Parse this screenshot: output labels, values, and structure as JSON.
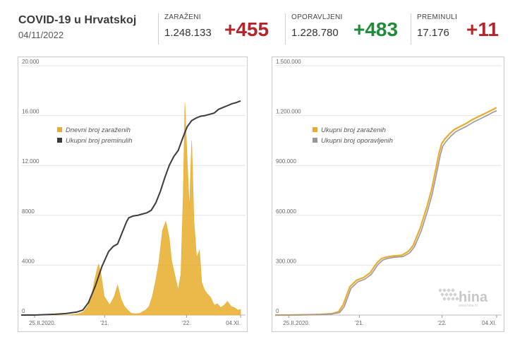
{
  "header": {
    "title": "COVID-19 u Hrvatskoj",
    "date": "04/11/2022",
    "stats": [
      {
        "label": "ZARAŽENI",
        "value": "1.248.133",
        "delta": "+455",
        "color": "red"
      },
      {
        "label": "OPORAVLJENI",
        "value": "1.228.780",
        "delta": "+483",
        "color": "green"
      },
      {
        "label": "PREMINULI",
        "value": "17.176",
        "delta": "+11",
        "color": "red"
      }
    ]
  },
  "logo": {
    "text": "hina",
    "sub": "www.hina.hr"
  },
  "colors": {
    "cases": "#e8ac2a",
    "deaths": "#3c3a3c",
    "recovered": "#9a96a0"
  },
  "chart_data": [
    {
      "type": "area",
      "ylim": [
        0,
        20000
      ],
      "yticks": [
        0,
        4000,
        8000,
        12000,
        16000,
        20000
      ],
      "ytick_labels": [
        "0",
        "4000",
        "8000",
        "12.000",
        "16.000",
        "20.000"
      ],
      "xlim": [
        0,
        1000
      ],
      "xticks": [
        60,
        372,
        737,
        978
      ],
      "xtick_labels": [
        "25.II.2020.",
        "'21.",
        "'22.",
        "04.XI."
      ],
      "legend": [
        "Dnevni broj zaraženih",
        "Ukupni broj preminulih"
      ],
      "series": [
        {
          "name": "Dnevni broj zaraženih",
          "kind": "area",
          "x": [
            0,
            60,
            200,
            240,
            255,
            270,
            280,
            300,
            315,
            325,
            335,
            345,
            355,
            370,
            395,
            415,
            430,
            445,
            460,
            475,
            490,
            510,
            530,
            555,
            570,
            585,
            600,
            615,
            630,
            645,
            660,
            670,
            685,
            700,
            712,
            722,
            730,
            740,
            750,
            760,
            770,
            782,
            795,
            805,
            818,
            830,
            845,
            860,
            875,
            890,
            905,
            920,
            935,
            950,
            965,
            978
          ],
          "y": [
            0,
            0,
            0,
            50,
            100,
            200,
            300,
            800,
            1700,
            2600,
            3400,
            4100,
            3400,
            1500,
            800,
            1500,
            2400,
            1300,
            700,
            400,
            150,
            100,
            150,
            400,
            700,
            1500,
            2800,
            4400,
            6800,
            7500,
            6200,
            4400,
            3200,
            2000,
            3300,
            9500,
            17000,
            12500,
            8500,
            14000,
            7600,
            4600,
            5200,
            2600,
            2000,
            1700,
            1400,
            800,
            900,
            600,
            800,
            1100,
            700,
            600,
            400,
            455
          ]
        },
        {
          "name": "Ukupni broj preminulih",
          "kind": "line",
          "x": [
            0,
            60,
            150,
            200,
            250,
            275,
            300,
            330,
            360,
            390,
            410,
            430,
            450,
            470,
            480,
            500,
            520,
            540,
            560,
            580,
            600,
            620,
            640,
            660,
            680,
            700,
            720,
            740,
            760,
            780,
            800,
            820,
            840,
            860,
            880,
            900,
            920,
            940,
            960,
            978
          ],
          "y": [
            0,
            0,
            60,
            120,
            250,
            400,
            1000,
            2300,
            3900,
            5100,
            5500,
            5700,
            6600,
            7500,
            7800,
            7950,
            8000,
            8100,
            8200,
            8400,
            9000,
            9900,
            11000,
            12000,
            12700,
            13200,
            14200,
            15100,
            15600,
            15800,
            15950,
            16000,
            16100,
            16200,
            16500,
            16650,
            16800,
            16950,
            17050,
            17176
          ]
        }
      ]
    },
    {
      "type": "line",
      "ylim": [
        0,
        1500000
      ],
      "yticks": [
        0,
        300000,
        600000,
        900000,
        1200000,
        1500000
      ],
      "ytick_labels": [
        "0",
        "300.000",
        "600.000",
        "900.000",
        "1.200.000",
        "1.500.000"
      ],
      "xlim": [
        0,
        1000
      ],
      "xticks": [
        60,
        372,
        737,
        978
      ],
      "xtick_labels": [
        "25.II.2020.",
        "'21.",
        "'22.",
        "04.XI."
      ],
      "legend": [
        "Ukupni broj zaraženih",
        "Ukupni broj oporavljenih"
      ],
      "series": [
        {
          "name": "Ukupni broj zaraženih",
          "x": [
            0,
            60,
            150,
            200,
            250,
            280,
            300,
            330,
            360,
            390,
            420,
            450,
            470,
            490,
            520,
            560,
            590,
            610,
            640,
            670,
            690,
            710,
            725,
            735,
            750,
            770,
            790,
            810,
            840,
            870,
            900,
            930,
            960,
            978
          ],
          "y": [
            0,
            0,
            2000,
            4000,
            8000,
            20000,
            60000,
            170000,
            210000,
            225000,
            255000,
            315000,
            340000,
            348000,
            355000,
            360000,
            385000,
            420000,
            520000,
            650000,
            750000,
            880000,
            980000,
            1030000,
            1060000,
            1090000,
            1115000,
            1130000,
            1150000,
            1175000,
            1195000,
            1215000,
            1235000,
            1248133
          ]
        },
        {
          "name": "Ukupni broj oporavljenih",
          "x": [
            0,
            60,
            150,
            200,
            250,
            285,
            305,
            335,
            365,
            395,
            425,
            455,
            475,
            495,
            525,
            565,
            595,
            615,
            645,
            675,
            695,
            715,
            730,
            740,
            755,
            775,
            795,
            815,
            845,
            875,
            905,
            935,
            962,
            978
          ],
          "y": [
            0,
            0,
            1500,
            3000,
            6000,
            15000,
            50000,
            160000,
            200000,
            215000,
            245000,
            305000,
            330000,
            340000,
            347000,
            352000,
            375000,
            410000,
            505000,
            635000,
            735000,
            865000,
            965000,
            1015000,
            1045000,
            1075000,
            1100000,
            1115000,
            1135000,
            1160000,
            1180000,
            1200000,
            1220000,
            1228780
          ]
        }
      ]
    }
  ]
}
